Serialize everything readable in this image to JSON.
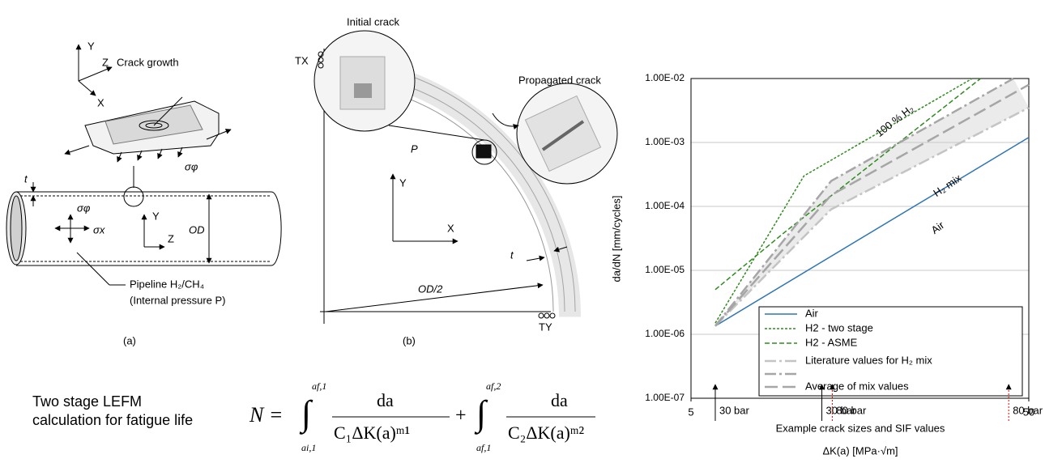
{
  "diagram_a": {
    "labels": {
      "y_top": "Y",
      "z_top": "Z",
      "x_top": "X",
      "crack_growth": "Crack growth",
      "sigma_phi_top": "σφ",
      "t": "t",
      "sigma_phi": "σφ",
      "sigma_x": "σx",
      "y_pipe": "Y",
      "z_pipe": "Z",
      "od": "OD",
      "pipeline": "Pipeline H₂/CH₄",
      "pressure": "(Internal pressure P)",
      "caption": "(a)"
    }
  },
  "diagram_b": {
    "labels": {
      "initial_crack": "Initial crack",
      "propagated_crack": "Propagated crack",
      "tx": "TX",
      "p": "P",
      "y": "Y",
      "x": "X",
      "t": "t",
      "od2": "OD/2",
      "ty": "TY",
      "caption": "(b)"
    }
  },
  "formula": {
    "caption_1": "Two stage LEFM",
    "caption_2": "calculation for fatigue life",
    "lhs": "N =",
    "upper_1": "af,1",
    "lower_1": "ai,1",
    "num_1": "da",
    "den_1": "C₁ΔK(a)ᵐ¹",
    "plus": "+",
    "upper_2": "af,2",
    "lower_2": "af,1",
    "num_2": "da",
    "den_2": "C₂ΔK(a)ᵐ²"
  },
  "chart_data": {
    "type": "line",
    "x_label": "ΔK(a) [MPa·√m]",
    "y_label": "da/dN [mm/cycles]",
    "x_log": true,
    "y_log": true,
    "grid": true,
    "xlim": [
      5,
      50
    ],
    "ylim": [
      1e-07,
      0.01
    ],
    "xticks": [
      5,
      50
    ],
    "yticks": [
      {
        "value": 1e-07,
        "label": "1.00E-07"
      },
      {
        "value": 1e-06,
        "label": "1.00E-06"
      },
      {
        "value": 1e-05,
        "label": "1.00E-05"
      },
      {
        "value": 0.0001,
        "label": "1.00E-04"
      },
      {
        "value": 0.001,
        "label": "1.00E-03"
      },
      {
        "value": 0.01,
        "label": "1.00E-02"
      }
    ],
    "series": [
      {
        "name": "Air",
        "color": "#2f75b5",
        "dash": "solid",
        "x": [
          5.9,
          50
        ],
        "values": [
          1.35e-06,
          0.0012
        ]
      },
      {
        "name": "H2 - two stage",
        "color": "#2e8b1e",
        "dash": "dotted",
        "x": [
          5.9,
          10.8,
          34
        ],
        "values": [
          1.5e-06,
          0.0003,
          0.01
        ]
      },
      {
        "name": "H2 - ASME",
        "color": "#2e8b1e",
        "dash": "dashed",
        "x": [
          5.9,
          9.5,
          36
        ],
        "values": [
          5e-06,
          4e-05,
          0.01
        ]
      },
      {
        "name": "Literature values for H₂ mix",
        "color": "#c4c4c4",
        "dash": "dashdot",
        "x": [
          5.9,
          13,
          50
        ],
        "values": [
          1.35e-06,
          9e-05,
          0.0035
        ]
      },
      {
        "color": "#a6a6a6",
        "dash": "dashdot",
        "x": [
          5.9,
          13,
          45
        ],
        "values": [
          1.35e-06,
          0.00025,
          0.01
        ]
      },
      {
        "name": "Average of mix values",
        "color": "#a6a6a6",
        "dash": "longdash",
        "x": [
          5.9,
          13,
          50
        ],
        "values": [
          1.35e-06,
          0.00015,
          0.008
        ]
      }
    ],
    "band": {
      "color": "#ebebeb"
    },
    "annotations": [
      {
        "text": "100 % H₂"
      },
      {
        "text": "H₂ mix"
      },
      {
        "text": "Air"
      }
    ],
    "markers": [
      {
        "x": 5.9,
        "text": "30 bar",
        "color": "#000000"
      },
      {
        "x": 12.2,
        "text": "30 bar",
        "color": "#000000"
      },
      {
        "x": 13.1,
        "text": "80 bar",
        "color": "#e00000"
      },
      {
        "x": 43.6,
        "text": "80 bar",
        "color": "#e00000"
      }
    ],
    "markers_caption": "Example crack sizes and SIF values"
  }
}
